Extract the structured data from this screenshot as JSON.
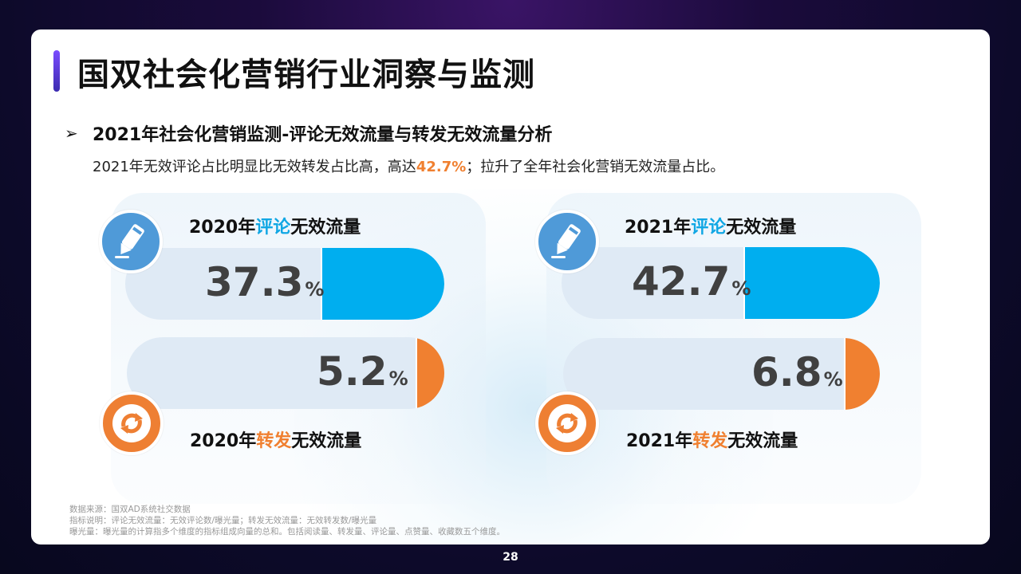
{
  "title": "国双社会化营销行业洞察与监测",
  "subtitle": {
    "bullet": "➢",
    "text": "2021年社会化营销监测-评论无效流量与转发无效流量分析"
  },
  "description": {
    "before": "2021年无效评论占比明显比无效转发占比高，高达",
    "highlight": "42.7%",
    "after": "；拉升了全年社会化营销无效流量占比。"
  },
  "panels": [
    {
      "comment_label": {
        "year": "2020年",
        "kw": "评论",
        "rest": "无效流量"
      },
      "comment_value": "37.3",
      "repost_label": {
        "year": "2020年",
        "kw": "转发",
        "rest": "无效流量"
      },
      "repost_value": "5.2"
    },
    {
      "comment_label": {
        "year": "2021年",
        "kw": "评论",
        "rest": "无效流量"
      },
      "comment_value": "42.7",
      "repost_label": {
        "year": "2021年",
        "kw": "转发",
        "rest": "无效流量"
      },
      "repost_value": "6.8"
    }
  ],
  "percent_sign": "%",
  "footnotes": [
    "数据来源：国双AD系统社交数据",
    "指标说明：评论无效流量：无效评论数/曝光量；转发无效流量：无效转发数/曝光量",
    "曝光量：曝光量的计算指多个维度的指标组成向量的总和。包括阅读量、转发量、评论量、点赞量、收藏数五个维度。"
  ],
  "page_number": "28",
  "colors": {
    "comment_fill": "#00aeef",
    "repost_fill": "#f08030",
    "icon_blue": "#4f9ad8",
    "icon_orange": "#ee7f33",
    "highlight": "#f08030"
  }
}
